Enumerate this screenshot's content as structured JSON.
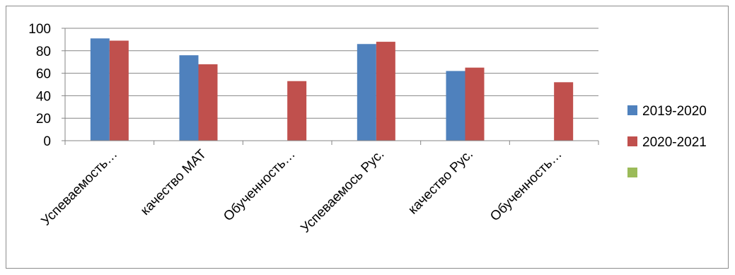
{
  "chart_data": {
    "type": "bar",
    "categories": [
      "Успеваемость…",
      "качество  МАТ",
      "Обученность…",
      "Успеваемось Рус.",
      "качество  Рус.",
      "Обученность…"
    ],
    "series": [
      {
        "name": "2019-2020",
        "color": "#4f81bd",
        "values": [
          91,
          76,
          null,
          86,
          62,
          null
        ]
      },
      {
        "name": "2020-2021",
        "color": "#c0504d",
        "values": [
          89,
          68,
          53,
          88,
          65,
          52
        ]
      },
      {
        "name": "",
        "color": "#9bbb59",
        "values": [
          null,
          null,
          null,
          null,
          null,
          null
        ]
      }
    ],
    "yticks": [
      0,
      20,
      40,
      60,
      80,
      100
    ],
    "ylim": [
      0,
      100
    ],
    "grid": true,
    "legend": "right"
  }
}
